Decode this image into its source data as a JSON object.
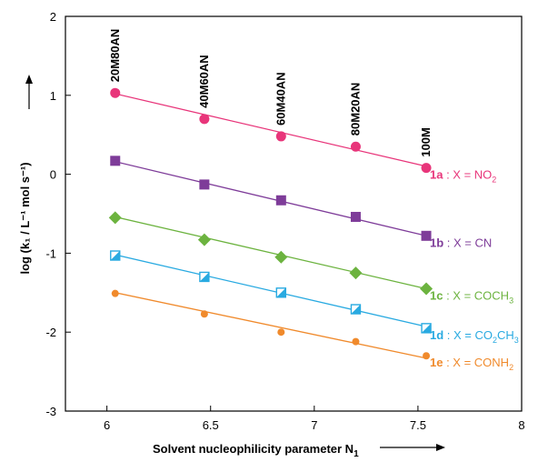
{
  "chart_data": {
    "type": "scatter",
    "x_axis": {
      "label_main": "Solvent nucleophilicity parameter N",
      "label_sub": "1",
      "lim": [
        5.8,
        8.0
      ],
      "ticks": [
        "6",
        "6.5",
        "7",
        "7.5",
        "8"
      ]
    },
    "y_axis": {
      "label_text": "log (k₁ / L⁻¹ mol s⁻¹)",
      "lim": [
        -3,
        2
      ],
      "ticks": [
        "2",
        "1",
        "0",
        "-1",
        "-2",
        "-3"
      ]
    },
    "solvents": [
      {
        "label": "20M80AN",
        "x": 6.04
      },
      {
        "label": "40M60AN",
        "x": 6.47
      },
      {
        "label": "60M40AN",
        "x": 6.84
      },
      {
        "label": "80M20AN",
        "x": 7.2
      },
      {
        "label": "100M",
        "x": 7.54
      }
    ],
    "series": [
      {
        "id": "1a",
        "x_label": " : X = NO",
        "sub": "2",
        "color": "#e8357a",
        "marker": "circle",
        "x": [
          6.04,
          6.47,
          6.84,
          7.2,
          7.54
        ],
        "y": [
          1.03,
          0.7,
          0.48,
          0.35,
          0.08
        ],
        "fit": [
          [
            6.04,
            1.02
          ],
          [
            7.54,
            0.1
          ]
        ]
      },
      {
        "id": "1b",
        "x_label": " : X = CN",
        "sub": "",
        "color": "#7e3c99",
        "marker": "square",
        "x": [
          6.04,
          6.47,
          6.84,
          7.2,
          7.54
        ],
        "y": [
          0.17,
          -0.13,
          -0.33,
          -0.54,
          -0.78
        ],
        "fit": [
          [
            6.04,
            0.16
          ],
          [
            7.54,
            -0.78
          ]
        ]
      },
      {
        "id": "1c",
        "x_label": " : X = COCH",
        "sub": "3",
        "color": "#6cb33f",
        "marker": "diamond",
        "x": [
          6.04,
          6.47,
          6.84,
          7.2,
          7.54
        ],
        "y": [
          -0.55,
          -0.83,
          -1.05,
          -1.25,
          -1.45
        ],
        "fit": [
          [
            6.04,
            -0.54
          ],
          [
            7.54,
            -1.45
          ]
        ]
      },
      {
        "id": "1d",
        "x_label": " : X = CO",
        "sub": "2",
        "x_label2": "CH",
        "sub2": "3",
        "color": "#29aae1",
        "marker": "half-square",
        "x": [
          6.04,
          6.47,
          6.84,
          7.2,
          7.54
        ],
        "y": [
          -1.03,
          -1.3,
          -1.5,
          -1.71,
          -1.95
        ],
        "fit": [
          [
            6.04,
            -1.02
          ],
          [
            7.54,
            -1.93
          ]
        ]
      },
      {
        "id": "1e",
        "x_label": " : X = CONH",
        "sub": "2",
        "color": "#f08a2c",
        "marker": "small-circle",
        "x": [
          6.04,
          6.47,
          6.84,
          7.2,
          7.54
        ],
        "y": [
          -1.51,
          -1.77,
          -2.0,
          -2.12,
          -2.3
        ],
        "fit": [
          [
            6.04,
            -1.5
          ],
          [
            7.54,
            -2.33
          ]
        ]
      }
    ]
  }
}
